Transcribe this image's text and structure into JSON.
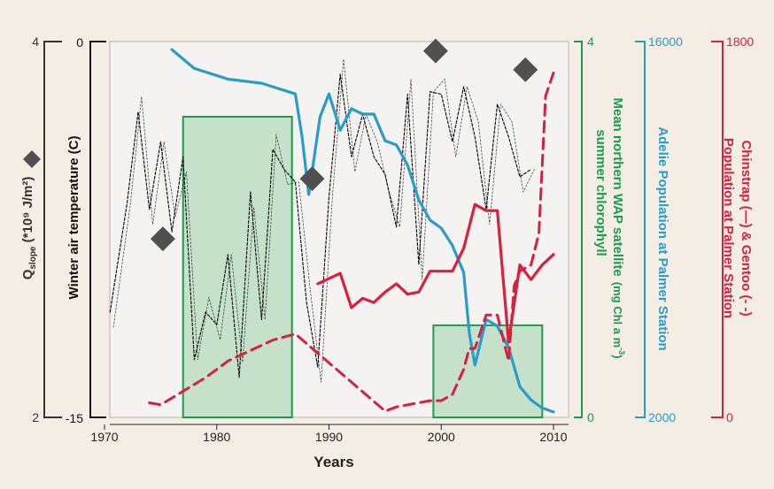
{
  "chart_data": {
    "type": "line",
    "xlabel": "Years",
    "x_ticks": [
      "1970",
      "1980",
      "1990",
      "2000",
      "2010"
    ],
    "xlim": [
      1970,
      2010
    ],
    "axes": [
      {
        "id": "qslope",
        "label": "Q",
        "label_sub": "slope",
        "label_rest": " (*10⁹ J/m²)",
        "ticks": [
          "4",
          "2"
        ],
        "range": [
          2,
          4
        ],
        "color": "#333333"
      },
      {
        "id": "temp",
        "label": "Winter air temperature (C)",
        "ticks": [
          "0",
          "-15"
        ],
        "range": [
          -15,
          0
        ],
        "color": "#111111"
      },
      {
        "id": "chl",
        "label": "Mean northern WAP satellite summer chlorophyll (mg Chl a m⁻³)",
        "label_line1": "Mean northern WAP satellite",
        "label_line1_unit": "(mg Chl a m",
        "label_line1_unit_sup": "-3",
        "label_line1_unit_end": ")",
        "label_line2": "summer chlorophyll",
        "ticks": [
          "4",
          "0"
        ],
        "range": [
          0,
          4
        ],
        "color": "#1e9a4e"
      },
      {
        "id": "adelie",
        "label": "Adelie Population at Palmer Station",
        "ticks": [
          "16000",
          "2000"
        ],
        "range": [
          2000,
          16000
        ],
        "color": "#2a9cc8"
      },
      {
        "id": "penguin_red",
        "label_line1": "Chinstrap (—) & Gentoo (- -)",
        "label_line2": "Population at Palmer Station",
        "ticks": [
          "1800",
          "0"
        ],
        "range": [
          0,
          1800
        ],
        "color": "#d8203f"
      }
    ],
    "series": [
      {
        "name": "Chlorophyll",
        "type": "bar",
        "axis": "chl",
        "color": "#1e9a4e",
        "bars": [
          {
            "x0": 1977,
            "x1": 1986.7,
            "value": 3.2
          },
          {
            "x0": 1999.3,
            "x1": 2009,
            "value": 0.98
          }
        ]
      },
      {
        "name": "Winter air temperature",
        "type": "line",
        "style": "dotted",
        "axis": "temp",
        "color": "#000000",
        "x": [
          1970.5,
          1972,
          1973,
          1974,
          1975,
          1976,
          1977,
          1978,
          1979,
          1980,
          1981,
          1982,
          1983,
          1984,
          1985,
          1986,
          1987,
          1988,
          1989,
          1990,
          1991,
          1992,
          1993,
          1994,
          1995,
          1996,
          1997,
          1998,
          1999,
          2000,
          2001,
          2002,
          2003,
          2004,
          2005,
          2006,
          2007,
          2008
        ],
        "y": [
          -10.8,
          -6.5,
          -2.8,
          -6.7,
          -4.0,
          -7.6,
          -4.6,
          -12.7,
          -10.8,
          -11.3,
          -8.5,
          -13.4,
          -6.0,
          -11.1,
          -4.3,
          -5.1,
          -5.6,
          -10.4,
          -13.0,
          -6.2,
          -1.3,
          -4.6,
          -2.9,
          -4.6,
          -5.3,
          -7.4,
          -2.1,
          -8.9,
          -2.0,
          -2.1,
          -4.0,
          -1.8,
          -3.8,
          -6.7,
          -2.5,
          -3.8,
          -5.4,
          -5.1
        ]
      },
      {
        "name": "Adelie",
        "type": "line",
        "axis": "adelie",
        "color": "#2a9cc8",
        "x": [
          1976,
          1978,
          1981,
          1984,
          1987,
          1987.6,
          1988.2,
          1989.2,
          1990,
          1991,
          1992,
          1993,
          1994,
          1995,
          1996,
          1997,
          1998,
          1999,
          2000,
          2001,
          2002,
          2002.5,
          2003,
          2004,
          2005,
          2006,
          2007,
          2008,
          2009,
          2010
        ],
        "y": [
          15700,
          15000,
          14600,
          14450,
          14050,
          12450,
          10300,
          13200,
          14050,
          12700,
          13500,
          13300,
          13300,
          12300,
          12150,
          11400,
          10100,
          9350,
          9050,
          8400,
          7400,
          5150,
          3950,
          5650,
          5400,
          4600,
          3150,
          2650,
          2350,
          2200
        ]
      },
      {
        "name": "Chinstrap",
        "type": "line",
        "axis": "penguin_red",
        "color": "#d8203f",
        "x": [
          1989,
          1991,
          1992,
          1993,
          1994,
          1995,
          1996,
          1997,
          1998,
          1999,
          2000,
          2001,
          2002,
          2003,
          2004,
          2005,
          2006,
          2007,
          2008,
          2009,
          2010
        ],
        "y": [
          640,
          690,
          525,
          570,
          550,
          600,
          640,
          590,
          600,
          700,
          700,
          700,
          810,
          1020,
          990,
          990,
          360,
          730,
          660,
          730,
          780
        ]
      },
      {
        "name": "Gentoo",
        "type": "line",
        "style": "dashed",
        "axis": "penguin_red",
        "color": "#d8203f",
        "x": [
          1974,
          1975,
          1979,
          1981,
          1985,
          1987,
          1995,
          1996,
          1999,
          2000,
          2001,
          2002,
          2002.5,
          2003,
          2004,
          2005,
          2005.5,
          2006,
          2006.5,
          2007,
          2008,
          2008.7,
          2009.3,
          2010
        ],
        "y": [
          70,
          60,
          190,
          270,
          370,
          400,
          30,
          50,
          80,
          80,
          110,
          230,
          330,
          330,
          490,
          490,
          380,
          270,
          630,
          700,
          730,
          880,
          1540,
          1650
        ]
      },
      {
        "name": "Qslope",
        "type": "scatter",
        "marker": "diamond",
        "axis": "qslope",
        "color": "#505050",
        "x": [
          1975.2,
          1988.5,
          1999.5,
          2007.5
        ],
        "y": [
          2.95,
          3.27,
          3.95,
          3.85
        ]
      }
    ],
    "grid": false
  }
}
